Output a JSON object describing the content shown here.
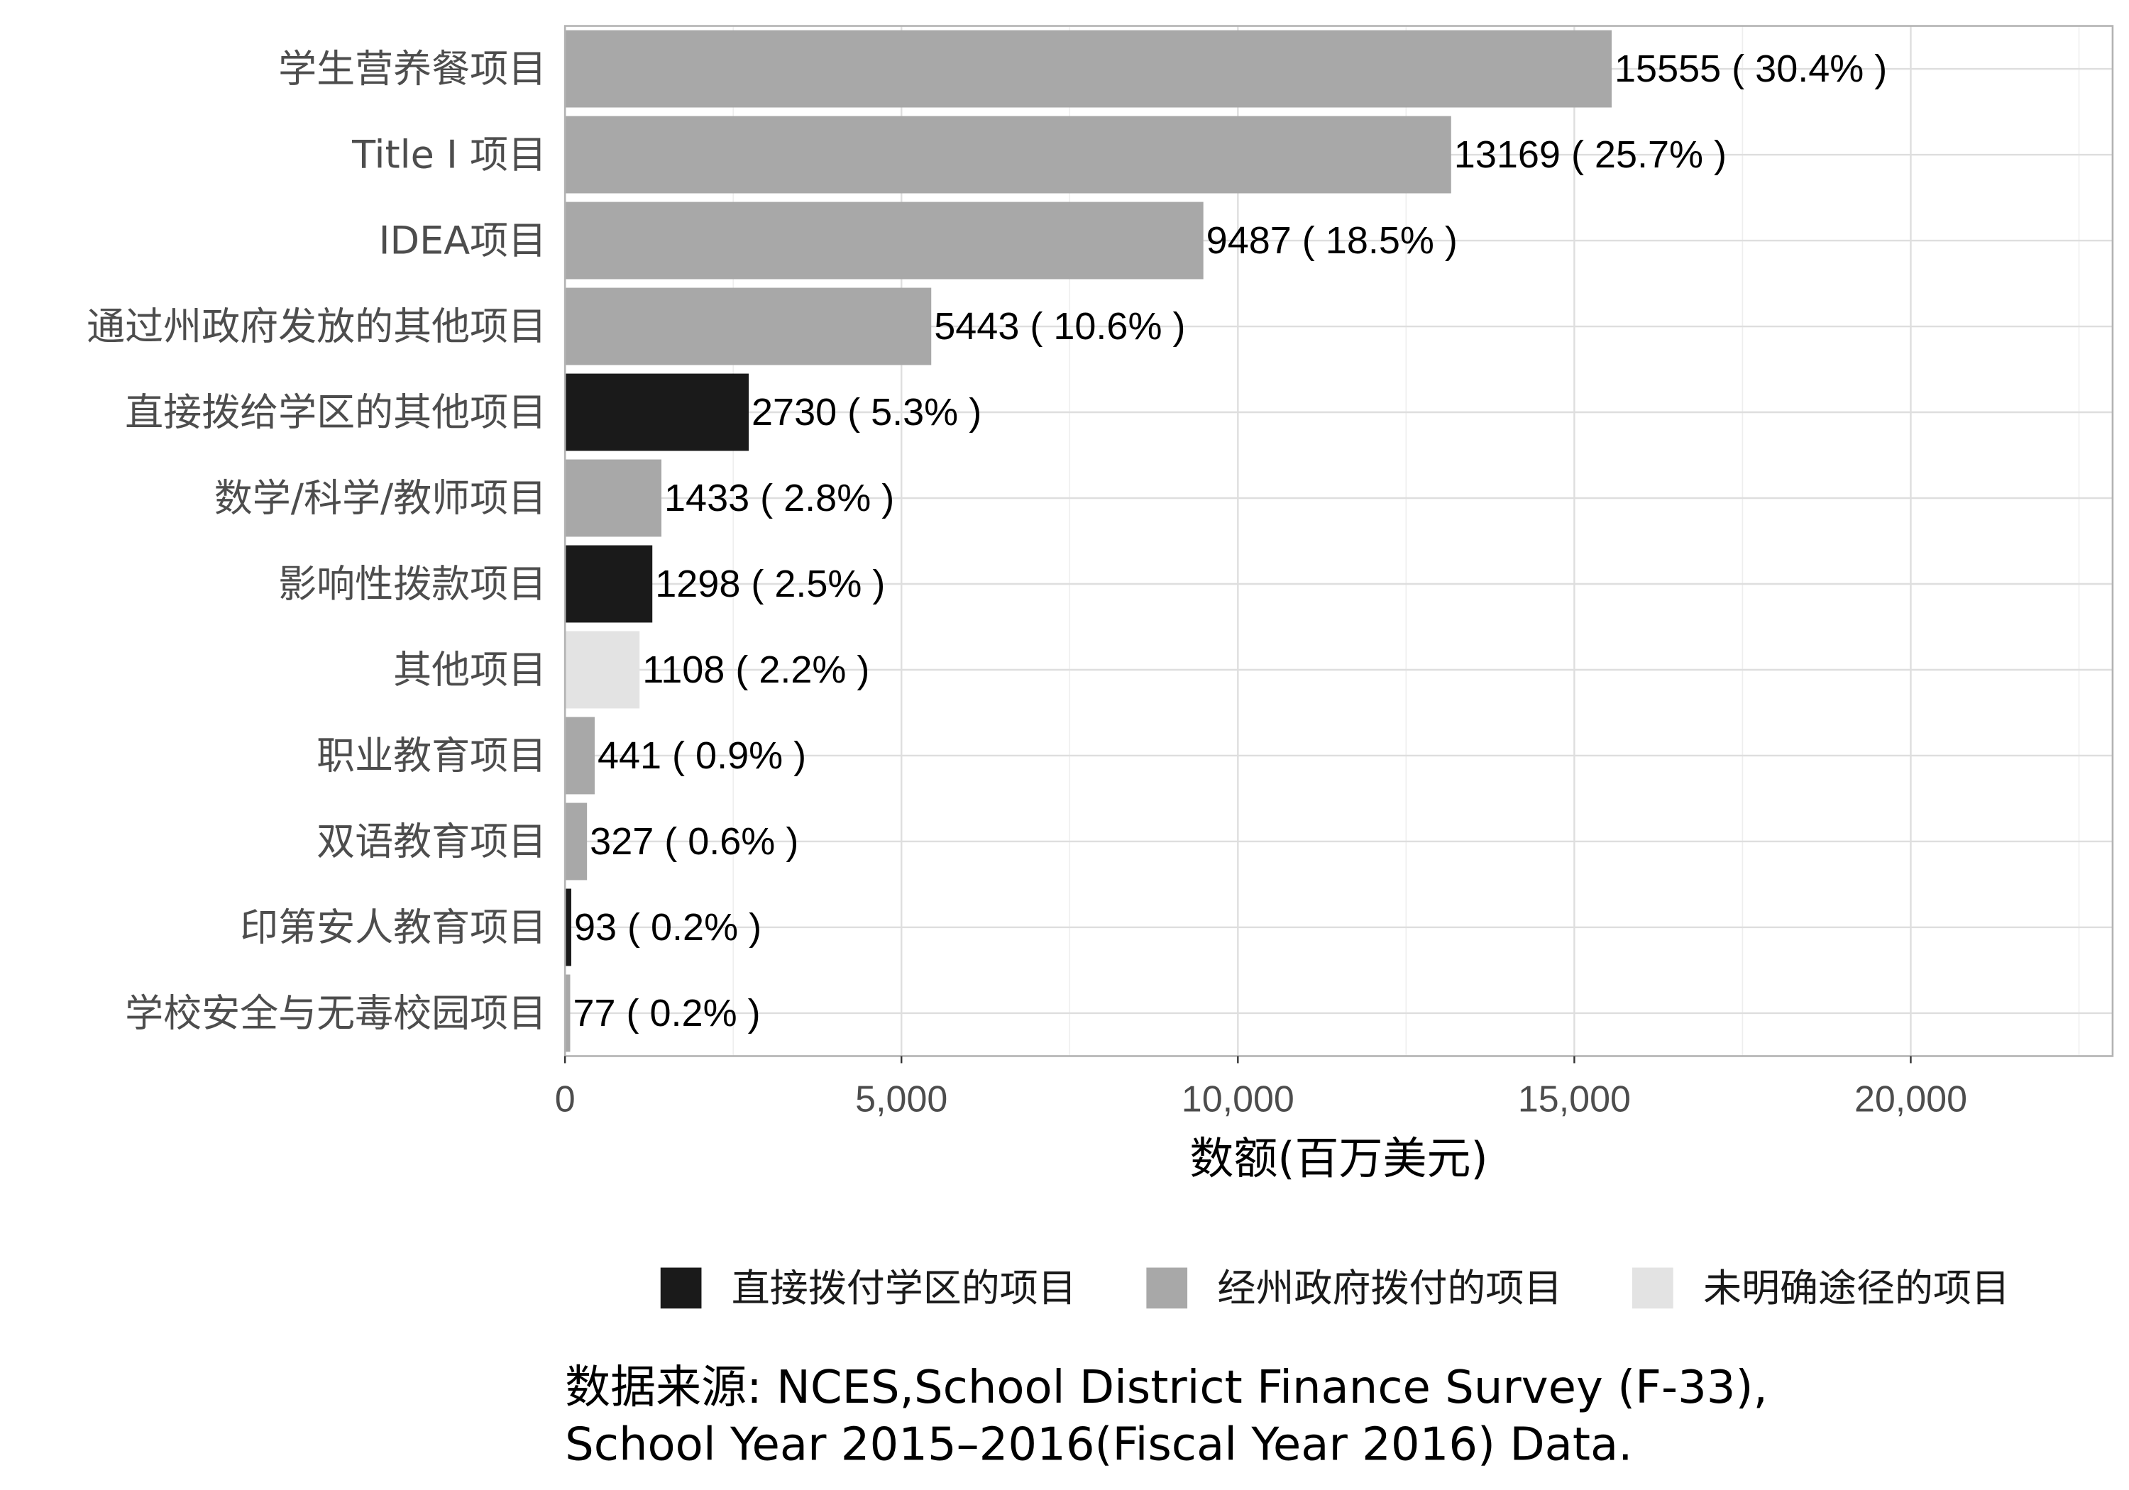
{
  "chart_data": {
    "type": "bar",
    "orientation": "horizontal",
    "categories": [
      "学生营养餐项目",
      "Title I 项目",
      "IDEA项目",
      "通过州政府发放的其他项目",
      "直接拨给学区的其他项目",
      "数学/科学/教师项目",
      "影响性拨款项目",
      "其他项目",
      "职业教育项目",
      "双语教育项目",
      "印第安人教育项目",
      "学校安全与无毒校园项目"
    ],
    "values": [
      15555,
      13169,
      9487,
      5443,
      2730,
      1433,
      1298,
      1108,
      441,
      327,
      93,
      77
    ],
    "data_labels": [
      "15555 ( 30.4% )",
      "13169 ( 25.7% )",
      "9487 ( 18.5% )",
      "5443 ( 10.6% )",
      "2730 ( 5.3% )",
      "1433 ( 2.8% )",
      "1298 ( 2.5% )",
      "1108 ( 2.2% )",
      "441 ( 0.9% )",
      "327 ( 0.6% )",
      "93 ( 0.2% )",
      "77 ( 0.2% )"
    ],
    "groups": [
      1,
      1,
      1,
      1,
      0,
      1,
      0,
      2,
      1,
      1,
      0,
      1
    ],
    "legend": [
      {
        "name": "直接拨付学区的项目",
        "color": "#1a1a1a"
      },
      {
        "name": "经州政府拨付的项目",
        "color": "#a8a8a8"
      },
      {
        "name": "未明确途径的项目",
        "color": "#e3e3e3"
      }
    ],
    "legend_position": "bottom",
    "xlabel": "数额(百万美元)",
    "ylabel": "",
    "title": "",
    "xlim": [
      0,
      23000
    ],
    "x_ticks": [
      0,
      5000,
      10000,
      15000,
      20000
    ],
    "x_tick_labels": [
      "0",
      "5,000",
      "10,000",
      "15,000",
      "20,000"
    ],
    "grid": true,
    "caption_lines": [
      "数据来源: NCES,School District Finance Survey (F-33),",
      "School Year 2015–2016(Fiscal Year 2016) Data."
    ]
  }
}
